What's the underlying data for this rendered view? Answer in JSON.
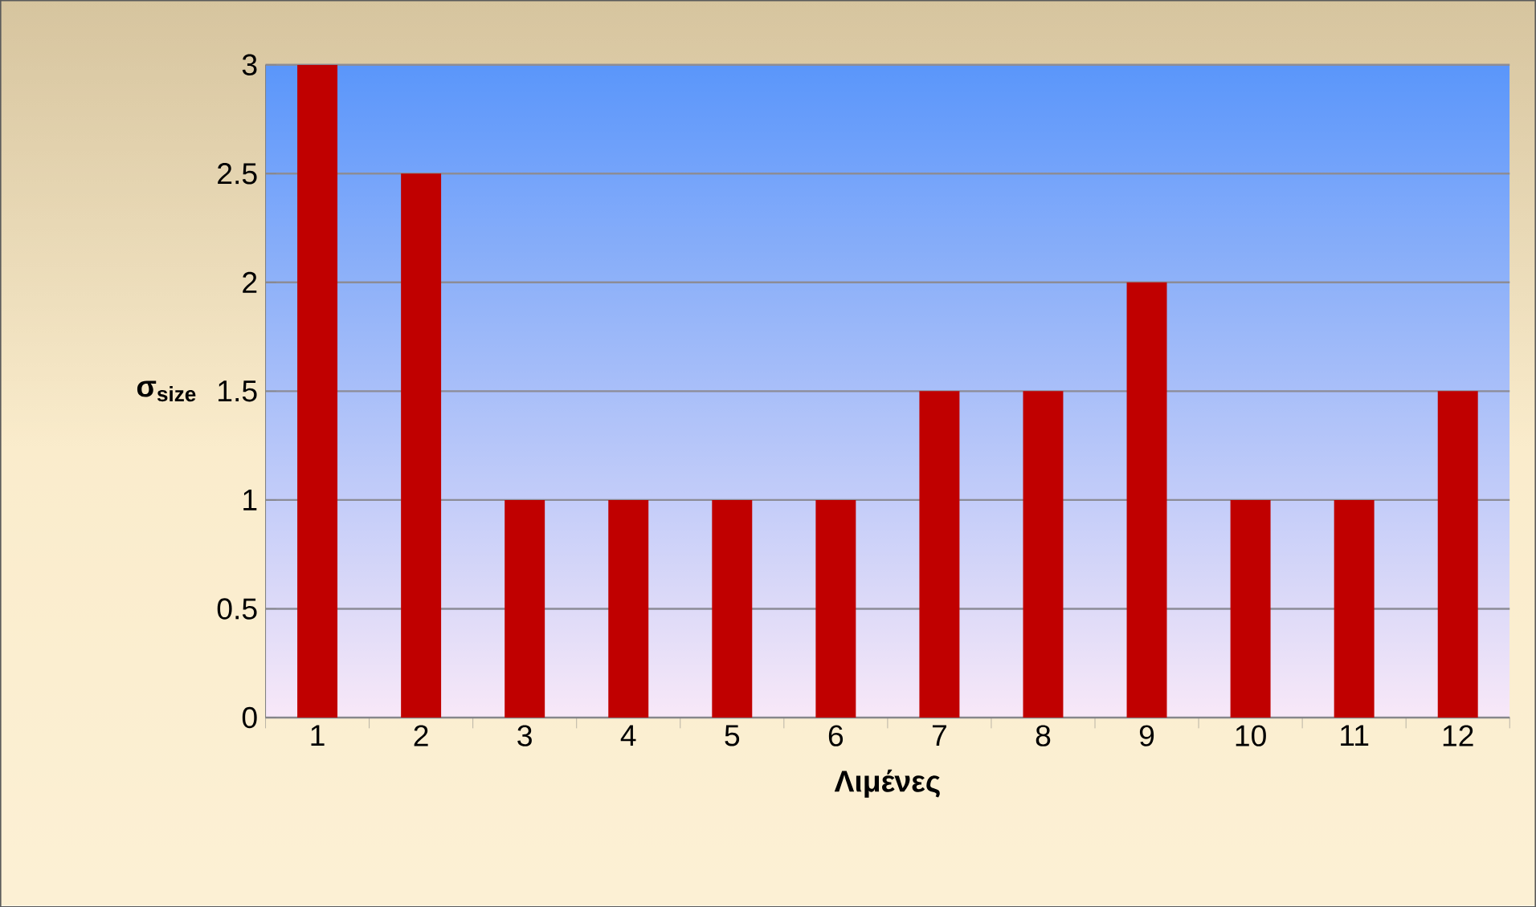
{
  "chart_data": {
    "type": "bar",
    "categories": [
      "1",
      "2",
      "3",
      "4",
      "5",
      "6",
      "7",
      "8",
      "9",
      "10",
      "11",
      "12"
    ],
    "values": [
      3,
      2.5,
      1,
      1,
      1,
      1,
      1.5,
      1.5,
      2,
      1,
      1,
      1.5
    ],
    "color": "#c00000",
    "xlabel": "Λιμένες",
    "ylabel": "σ$_{size}$",
    "ylim": [
      0,
      3
    ],
    "yticks": [
      0,
      0.5,
      1,
      1.5,
      2,
      2.5,
      3
    ],
    "grid": "y"
  }
}
